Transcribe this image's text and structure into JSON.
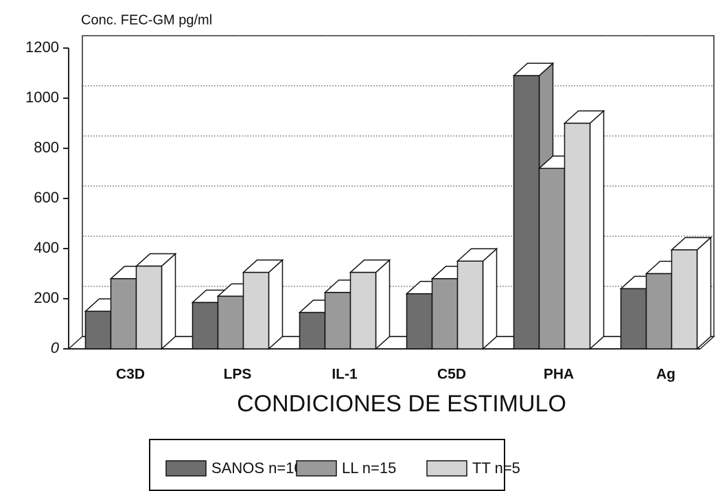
{
  "chart_data": {
    "type": "bar3d",
    "title": "Conc. FEC-GM pg/ml",
    "x_label": "CONDICIONES DE ESTIMULO",
    "categories": [
      "C3D",
      "LPS",
      "IL-1",
      "C5D",
      "PHA",
      "Ag"
    ],
    "series": [
      {
        "name": "SANOS n=10",
        "color": "#6e6e6e",
        "values": [
          150,
          185,
          145,
          220,
          1090,
          240
        ]
      },
      {
        "name": "LL n=15",
        "color": "#9a9a9a",
        "values": [
          280,
          210,
          225,
          280,
          720,
          300
        ]
      },
      {
        "name": "TT n=5",
        "color": "#d4d4d4",
        "values": [
          330,
          305,
          305,
          350,
          900,
          395
        ]
      }
    ],
    "ylim": [
      0,
      1200
    ],
    "yticks": [
      0,
      200,
      400,
      600,
      800,
      1000,
      1200
    ],
    "grid": true
  }
}
